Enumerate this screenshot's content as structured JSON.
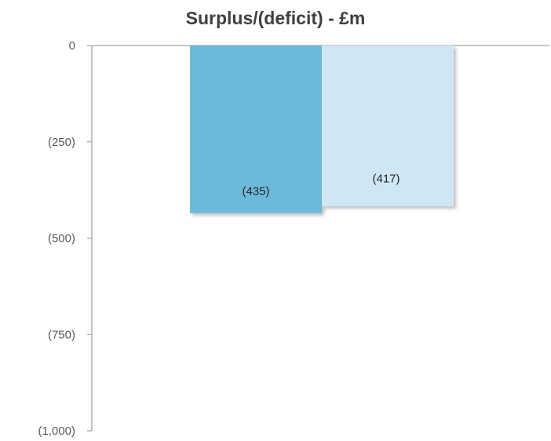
{
  "chart_data": {
    "type": "bar",
    "title": "Surplus/(deficit) - £m",
    "xlabel": "",
    "ylabel": "",
    "categories": [
      "",
      ""
    ],
    "values": [
      -435,
      -417
    ],
    "data_labels": [
      "(435)",
      "(417)"
    ],
    "ylim": [
      -1000,
      0
    ],
    "yticks": [
      0,
      -250,
      -500,
      -750,
      -1000
    ],
    "ytick_labels": [
      "0",
      "(250)",
      "(500)",
      "(750)",
      "(1,000)"
    ],
    "grid": false,
    "legend": "none",
    "colors": [
      "#6cbad9",
      "#cfe7f4"
    ],
    "axis_color": "#a6a6a6"
  }
}
